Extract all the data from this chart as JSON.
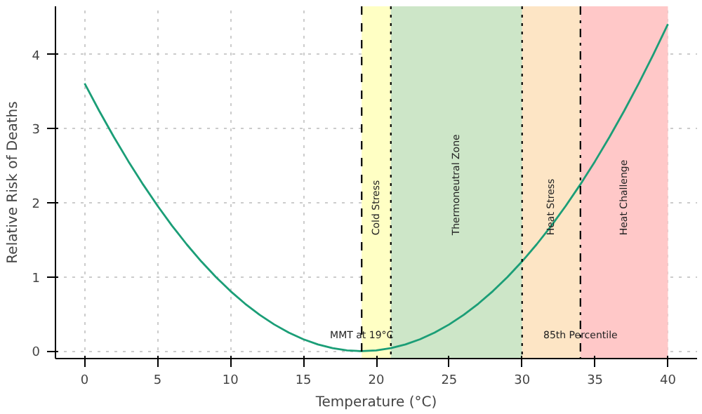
{
  "chart_data": {
    "type": "line",
    "xlabel": "Temperature (°C)",
    "ylabel": "Relative Risk of Deaths",
    "x": [
      0,
      1,
      2,
      3,
      4,
      5,
      6,
      7,
      8,
      9,
      10,
      11,
      12,
      13,
      14,
      15,
      16,
      17,
      18,
      19,
      20,
      21,
      22,
      23,
      24,
      25,
      26,
      27,
      28,
      29,
      30,
      31,
      32,
      33,
      34,
      35,
      36,
      37,
      38,
      39,
      40
    ],
    "series": [
      {
        "color": "#1b9e77",
        "values": [
          3.61,
          3.24,
          2.89,
          2.56,
          2.25,
          1.96,
          1.69,
          1.44,
          1.21,
          1.0,
          0.81,
          0.64,
          0.49,
          0.36,
          0.25,
          0.16,
          0.09,
          0.04,
          0.01,
          0,
          0.01,
          0.04,
          0.09,
          0.16,
          0.25,
          0.36,
          0.49,
          0.64,
          0.81,
          1.0,
          1.21,
          1.44,
          1.69,
          1.96,
          2.25,
          2.56,
          2.89,
          3.24,
          3.61,
          4.0,
          4.41
        ]
      }
    ],
    "xlim": [
      -2,
      42
    ],
    "ylim": [
      -0.1,
      4.65
    ],
    "xticks": [
      0,
      5,
      10,
      15,
      20,
      25,
      30,
      35,
      40
    ],
    "yticks": [
      0,
      1,
      2,
      3,
      4
    ],
    "grid": true,
    "marker": "none",
    "line_style": "solid",
    "bands": [
      {
        "axis": "x",
        "from": 19,
        "to": 21,
        "label": "Cold Stress",
        "color": "#ffffc4"
      },
      {
        "axis": "x",
        "from": 21,
        "to": 30,
        "label": "Thermoneutral Zone",
        "color": "#cde6c8"
      },
      {
        "axis": "x",
        "from": 30,
        "to": 34,
        "label": "Heat Stress",
        "color": "#fde5c5"
      },
      {
        "axis": "x",
        "from": 34,
        "to": 40,
        "label": "Heat Challenge",
        "color": "#ffc8c8"
      }
    ],
    "ref_lines": [
      {
        "axis": "x",
        "value": 19,
        "label": "MMT at 19°C",
        "color": "#000000",
        "line_style": "dashed"
      },
      {
        "axis": "x",
        "value": 21,
        "label": null,
        "color": "#000000",
        "line_style": "dotted"
      },
      {
        "axis": "x",
        "value": 30,
        "label": null,
        "color": "#000000",
        "line_style": "dotted"
      },
      {
        "axis": "x",
        "value": 34,
        "label": "85th Percentile",
        "color": "#000000",
        "line_style": "dashdot"
      }
    ]
  }
}
